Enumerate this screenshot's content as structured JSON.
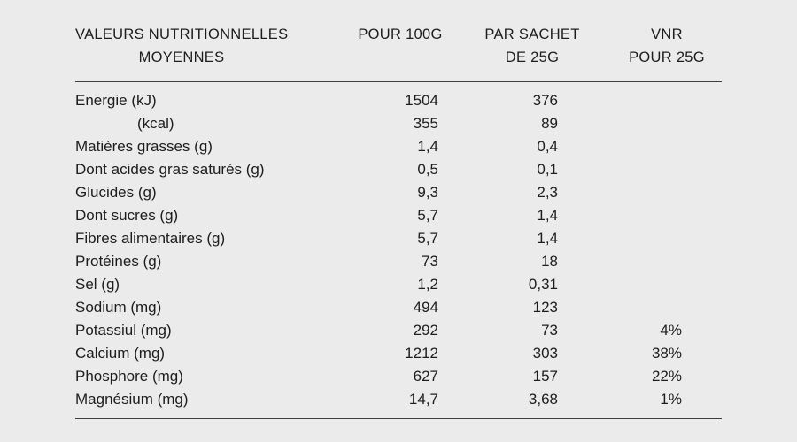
{
  "page": {
    "background": "#ebebeb",
    "text_color": "#1d1d1b",
    "rule_color": "#3f3f3f"
  },
  "chart_data": {
    "type": "table",
    "title": "VALEURS NUTRITIONNELLES MOYENNES",
    "columns": [
      "VALEURS NUTRITIONNELLES MOYENNES",
      "POUR 100G",
      "PAR SACHET DE 25G",
      "VNR POUR 25G"
    ],
    "header": {
      "col1": {
        "line1": "VALEURS NUTRITIONNELLES",
        "line2": "MOYENNES"
      },
      "col2": {
        "line1": "POUR 100G",
        "line2": ""
      },
      "col3": {
        "line1": "PAR SACHET",
        "line2": "DE 25G"
      },
      "col4": {
        "line1": "VNR",
        "line2": "POUR 25G"
      }
    },
    "rows": [
      {
        "label": "Energie (kJ)",
        "pour_100g": "1504",
        "par_sachet_25g": "376",
        "vnr_pour_25g": ""
      },
      {
        "label": "(kcal)",
        "pour_100g": "355",
        "par_sachet_25g": "89",
        "vnr_pour_25g": ""
      },
      {
        "label": "Matières grasses (g)",
        "pour_100g": "1,4",
        "par_sachet_25g": "0,4",
        "vnr_pour_25g": ""
      },
      {
        "label": "Dont acides gras saturés (g)",
        "pour_100g": "0,5",
        "par_sachet_25g": "0,1",
        "vnr_pour_25g": ""
      },
      {
        "label": "Glucides (g)",
        "pour_100g": "9,3",
        "par_sachet_25g": "2,3",
        "vnr_pour_25g": ""
      },
      {
        "label": "Dont sucres (g)",
        "pour_100g": "5,7",
        "par_sachet_25g": "1,4",
        "vnr_pour_25g": ""
      },
      {
        "label": "Fibres alimentaires (g)",
        "pour_100g": "5,7",
        "par_sachet_25g": "1,4",
        "vnr_pour_25g": ""
      },
      {
        "label": "Protéines (g)",
        "pour_100g": "73",
        "par_sachet_25g": "18",
        "vnr_pour_25g": ""
      },
      {
        "label": "Sel (g)",
        "pour_100g": "1,2",
        "par_sachet_25g": "0,31",
        "vnr_pour_25g": ""
      },
      {
        "label": "Sodium (mg)",
        "pour_100g": "494",
        "par_sachet_25g": "123",
        "vnr_pour_25g": ""
      },
      {
        "label": "Potassiul (mg)",
        "pour_100g": "292",
        "par_sachet_25g": "73",
        "vnr_pour_25g": "4%"
      },
      {
        "label": "Calcium (mg)",
        "pour_100g": "1212",
        "par_sachet_25g": "303",
        "vnr_pour_25g": "38%"
      },
      {
        "label": "Phosphore (mg)",
        "pour_100g": "627",
        "par_sachet_25g": "157",
        "vnr_pour_25g": "22%"
      },
      {
        "label": "Magnésium (mg)",
        "pour_100g": "14,7",
        "par_sachet_25g": "3,68",
        "vnr_pour_25g": "1%"
      }
    ]
  }
}
